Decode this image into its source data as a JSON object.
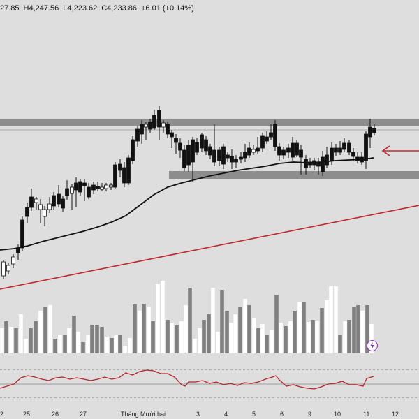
{
  "ohlc": {
    "open": "27.85",
    "high": "H4,247.56",
    "low": "L4,223.62",
    "close": "C4,233.86",
    "change": "+6.01 (+0.14%)"
  },
  "colors": {
    "background": "#dedede",
    "up_candle": "#ffffff",
    "down_candle": "#111111",
    "volume_up": "#ffffff",
    "volume_down": "#808080",
    "zone": "#7f7f7f",
    "trendline": "#c0282f",
    "moving_average": "#111111",
    "oscillator": "#b3252e",
    "event_icon": "#8a2bb5"
  },
  "icons": {
    "arrow": "left-arrow-icon",
    "event": "lightning-icon"
  },
  "x_axis": {
    "labels": [
      "2",
      "25",
      "26",
      "27",
      "Tháng Mười hai",
      "3",
      "4",
      "5",
      "6",
      "9",
      "10",
      "11",
      "12"
    ]
  }
}
